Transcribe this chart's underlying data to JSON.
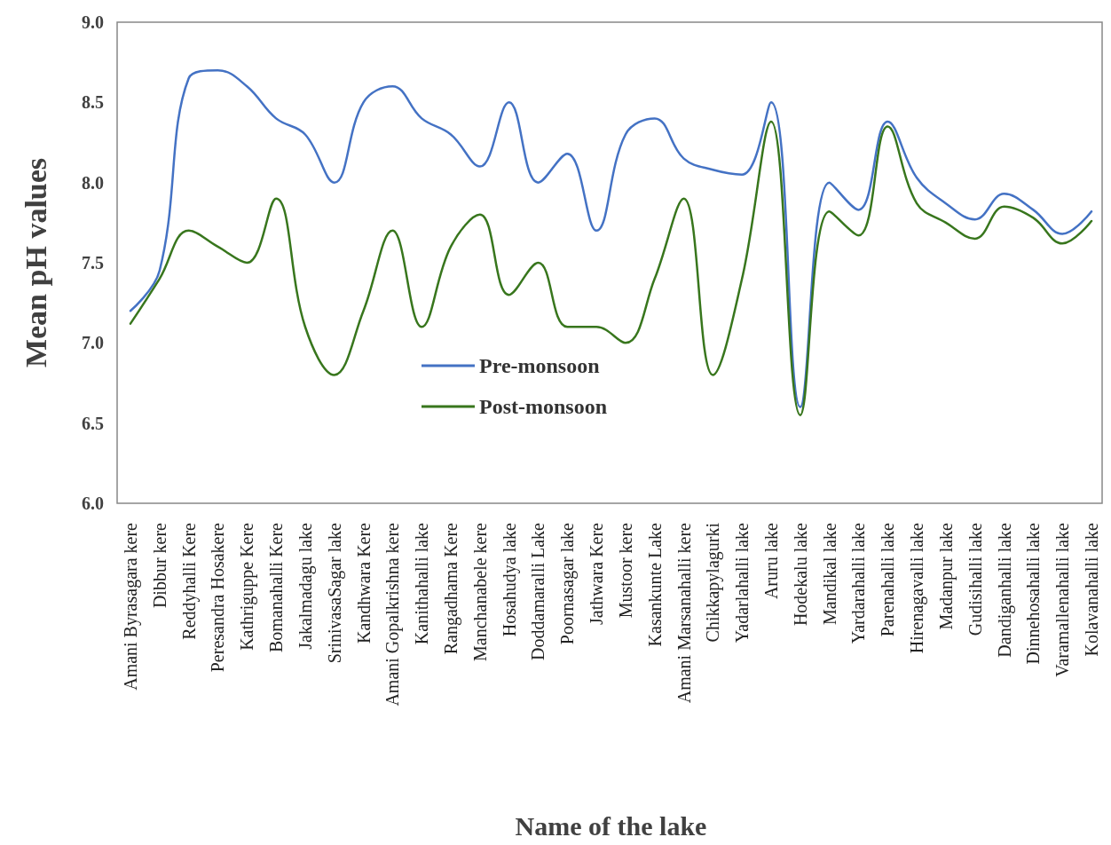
{
  "chart_data": {
    "type": "line",
    "xlabel": "Name of the lake",
    "ylabel": "Mean pH values",
    "categories": [
      "Amani Byrasagara kere",
      "Dibbur kere",
      "Reddyhalli Kere",
      "Peresandra Hosakere",
      "Kathriguppe Kere",
      "Bomanahalli Kere",
      "Jakalmadagu lake",
      "SrinivasaSagar lake",
      "Kandhwara Kere",
      "Amani Gopalkrishna kere",
      "Kanithahalli lake",
      "Rangadhama Kere",
      "Manchanabele kere",
      "Hosahudya lake",
      "Doddamaralli Lake",
      "Poornasagar lake",
      "Jathwara Kere",
      "Mustoor kere",
      "Kasankunte Lake",
      "Amani Marsanahalli kere",
      "Chikkapylagurki",
      "Yadarlahalli lake",
      "Aruru lake",
      "Hodekalu lake",
      "Mandikal lake",
      "Yardarahalli lake",
      "Parenahalli lake",
      "Hirenagavalli lake",
      "Madanpur lake",
      "Gudisihalli lake",
      "Dandiganhalli lake",
      "Dinnehosahalli lake",
      "Varamallenahalli lake",
      "Kolavanahalli lake"
    ],
    "series": [
      {
        "name": "Pre-monsoon",
        "color": "#4472c4",
        "values": [
          7.2,
          7.45,
          8.65,
          8.7,
          8.6,
          8.4,
          8.3,
          8.0,
          8.5,
          8.6,
          8.4,
          8.3,
          8.1,
          8.5,
          8.0,
          8.18,
          7.7,
          8.3,
          8.4,
          8.15,
          8.08,
          8.05,
          8.5,
          6.6,
          8.0,
          7.83,
          8.38,
          8.03,
          7.87,
          7.77,
          7.93,
          7.83,
          7.68,
          7.82
        ]
      },
      {
        "name": "Post-monsoon",
        "color": "#38761d",
        "values": [
          7.12,
          7.4,
          7.7,
          7.6,
          7.5,
          7.9,
          7.1,
          6.8,
          7.2,
          7.7,
          7.1,
          7.6,
          7.8,
          7.3,
          7.5,
          7.1,
          7.1,
          7.0,
          7.4,
          7.9,
          6.8,
          7.4,
          8.38,
          6.55,
          7.82,
          7.67,
          8.35,
          7.87,
          7.75,
          7.65,
          7.85,
          7.78,
          7.62,
          7.76
        ]
      }
    ],
    "ylim": [
      6.0,
      9.0
    ],
    "yticks": [
      {
        "value": 6.0,
        "label": "6.0"
      },
      {
        "value": 6.5,
        "label": "6.5"
      },
      {
        "value": 7.0,
        "label": "7.0"
      },
      {
        "value": 7.5,
        "label": "7.5"
      },
      {
        "value": 8.0,
        "label": "8.0"
      },
      {
        "value": 8.5,
        "label": "8.5"
      },
      {
        "value": 9.0,
        "label": "9.0"
      }
    ],
    "grid": false,
    "legend": "center",
    "marker": "none",
    "line_style": "solid"
  }
}
